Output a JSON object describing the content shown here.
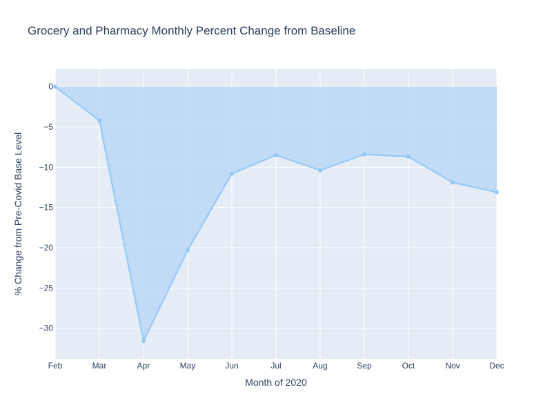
{
  "chart_data": {
    "type": "area",
    "title": "Grocery and Pharmacy Monthly Percent Change from Baseline",
    "xlabel": "Month of 2020",
    "ylabel": "% Change from Pre-Covid Base Level",
    "categories": [
      "Feb",
      "Mar",
      "Apr",
      "May",
      "Jun",
      "Jul",
      "Aug",
      "Sep",
      "Oct",
      "Nov",
      "Dec"
    ],
    "series": [
      {
        "values": [
          0,
          -4.2,
          -31.6,
          -20.3,
          -10.8,
          -8.5,
          -10.4,
          -8.4,
          -8.7,
          -11.9,
          -13.1
        ]
      }
    ],
    "yticks": [
      0,
      -5,
      -10,
      -15,
      -20,
      -25,
      -30
    ],
    "ylim": [
      -33.8,
      2.2
    ],
    "grid": true,
    "colors": {
      "plot_bg": "#e5ecf6",
      "grid": "#ffffff",
      "line": "#90c8f8",
      "fill": "#bcd8f6",
      "text": "#2a3f5f"
    }
  }
}
